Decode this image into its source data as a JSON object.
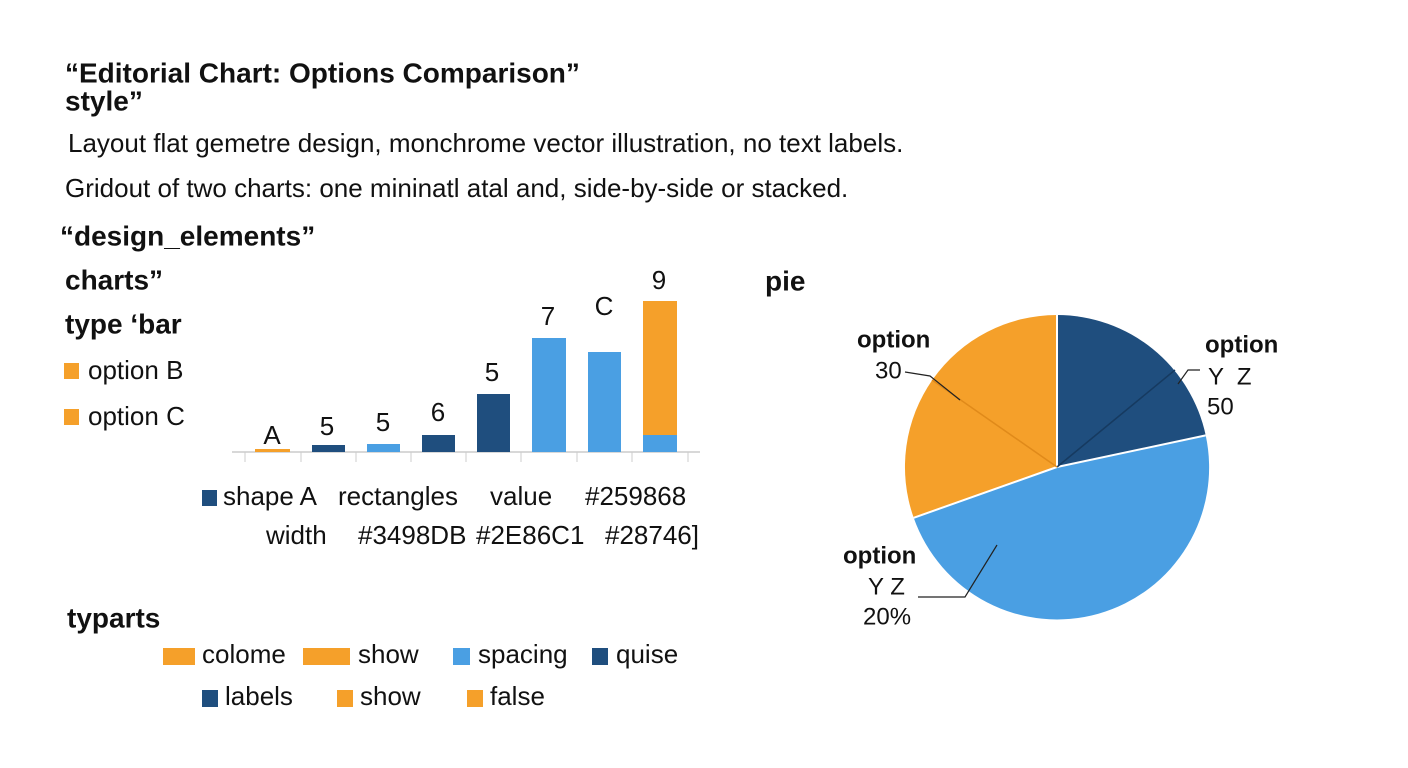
{
  "header": {
    "title": "“Editorial Chart: Options Comparison”",
    "style": "style”",
    "lines": [
      "Layout flat gemetre design, monchrome vector illustration, no text labels.",
      "Gridout of two charts: one mininatl atal and, side-by-side or stacked."
    ]
  },
  "design": {
    "heading": "“design_elements”",
    "charts": "charts”",
    "type": "type ‘bar",
    "legend": [
      "option B",
      "option C"
    ]
  },
  "bar_chart": {
    "labels": [
      "A",
      "5",
      "5",
      "6",
      "5",
      "7",
      "C",
      "9"
    ],
    "legend": [
      "shape A",
      "rectangles",
      "value",
      "#259868",
      "width",
      "#3498DB",
      "#2E86C1",
      "#28746]"
    ]
  },
  "bottom": {
    "heading": "typarts",
    "legend": [
      "colome",
      "show",
      "spacing",
      "quise",
      "labels",
      "show",
      "false"
    ]
  },
  "pie_chart": {
    "heading": "pie",
    "labels": [
      "option",
      "30",
      "option",
      "Y  Z",
      "50",
      "option",
      "Y Z",
      "20%"
    ]
  }
}
